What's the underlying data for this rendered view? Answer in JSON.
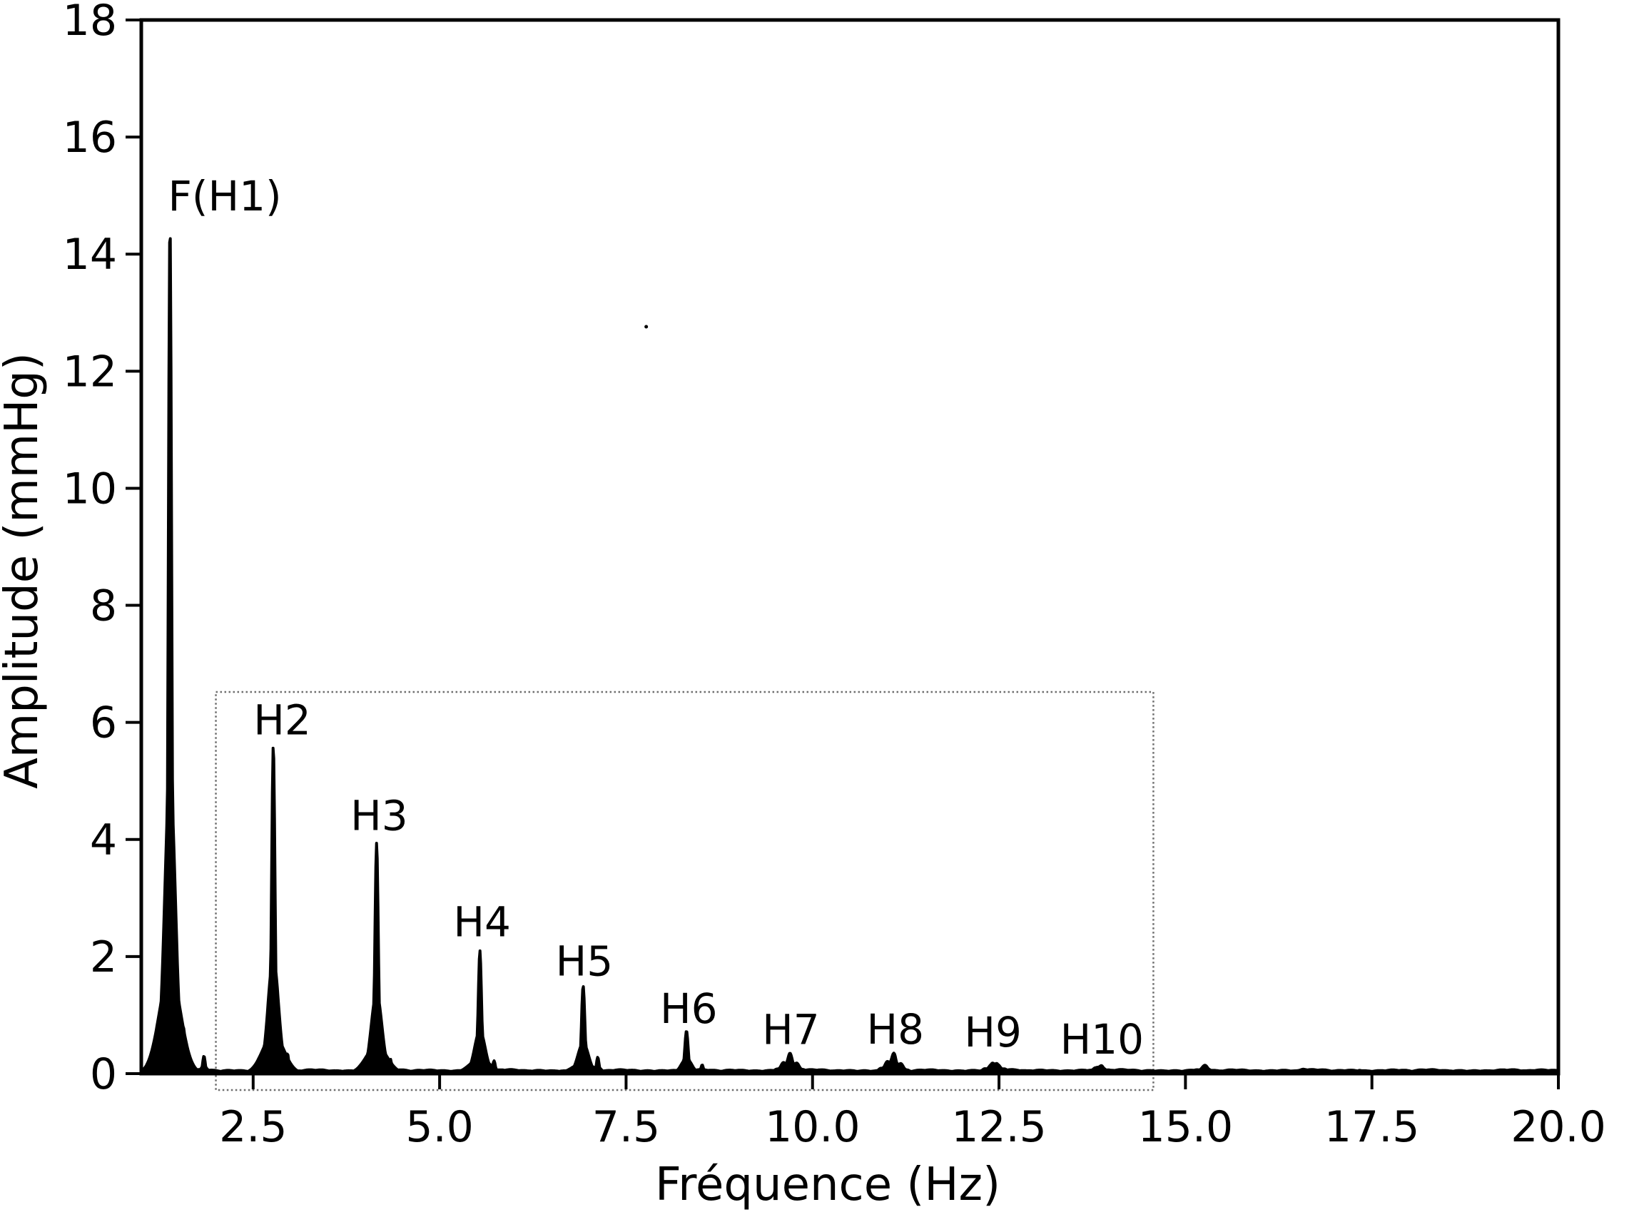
{
  "figure": {
    "background": "#ffffff",
    "line_color": "#000000",
    "box_color": "#6e6e6e"
  },
  "chart_data": {
    "type": "line",
    "title": "",
    "xlabel": "Fréquence (Hz)",
    "ylabel": "Amplitude (mmHg)",
    "xlim": [
      1.0,
      20.0
    ],
    "ylim": [
      0,
      18
    ],
    "grid": false,
    "legend": "none",
    "x_ticks": [
      2.5,
      5.0,
      7.5,
      10.0,
      12.5,
      15.0,
      17.5,
      20.0
    ],
    "x_tick_labels": [
      "2.5",
      "5.0",
      "7.5",
      "10.0",
      "12.5",
      "15.0",
      "17.5",
      "20.0"
    ],
    "y_ticks": [
      0,
      2,
      4,
      6,
      8,
      10,
      12,
      14,
      16,
      18
    ],
    "y_tick_labels": [
      "0",
      "2",
      "4",
      "6",
      "8",
      "10",
      "12",
      "14",
      "16",
      "18"
    ],
    "fundamental_hz": 1.385,
    "peaks": [
      {
        "label": "F(H1)",
        "f": 1.385,
        "amp": 14.55,
        "label_f": 2.12,
        "label_amp": 15.0
      },
      {
        "label": "H2",
        "f": 2.77,
        "amp": 5.61,
        "label_f": 2.89,
        "label_amp": 6.05
      },
      {
        "label": "H3",
        "f": 4.155,
        "amp": 3.94,
        "label_f": 4.19,
        "label_amp": 4.42
      },
      {
        "label": "H4",
        "f": 5.54,
        "amp": 2.1,
        "label_f": 5.57,
        "label_amp": 2.6
      },
      {
        "label": "H5",
        "f": 6.925,
        "amp": 1.5,
        "label_f": 6.94,
        "label_amp": 1.93
      },
      {
        "label": "H6",
        "f": 8.31,
        "amp": 0.73,
        "label_f": 8.34,
        "label_amp": 1.12
      },
      {
        "label": "H7",
        "f": 9.695,
        "amp": 0.35,
        "label_f": 9.71,
        "label_amp": 0.76
      },
      {
        "label": "H8",
        "f": 11.08,
        "amp": 0.36,
        "label_f": 11.11,
        "label_amp": 0.77
      },
      {
        "label": "H9",
        "f": 12.44,
        "amp": 0.23,
        "label_f": 12.42,
        "label_amp": 0.72
      },
      {
        "label": "H10",
        "f": 13.85,
        "amp": 0.16,
        "label_f": 13.88,
        "label_amp": 0.6
      }
    ],
    "side_lobes": [
      {
        "f": 1.57,
        "amp": 0.77
      },
      {
        "f": 1.84,
        "amp": 0.3
      },
      {
        "f": 2.96,
        "amp": 0.34
      },
      {
        "f": 4.34,
        "amp": 0.25
      },
      {
        "f": 5.73,
        "amp": 0.22
      },
      {
        "f": 7.12,
        "amp": 0.28
      },
      {
        "f": 8.52,
        "amp": 0.15
      }
    ],
    "extra_bumps": [
      {
        "f": 15.25,
        "amp": 0.15
      },
      {
        "f": 16.6,
        "amp": 0.1
      },
      {
        "f": 17.35,
        "amp": 0.06
      },
      {
        "f": 18.3,
        "amp": 0.05
      },
      {
        "f": 19.3,
        "amp": 0.05
      }
    ],
    "noise_floor": 0.045,
    "annotation_box": {
      "f0": 2.0,
      "f1": 14.57,
      "amp0": -0.28,
      "amp1": 6.52,
      "style": "dotted"
    },
    "artifact_dot": {
      "f": 7.77,
      "amp": 12.76
    }
  }
}
